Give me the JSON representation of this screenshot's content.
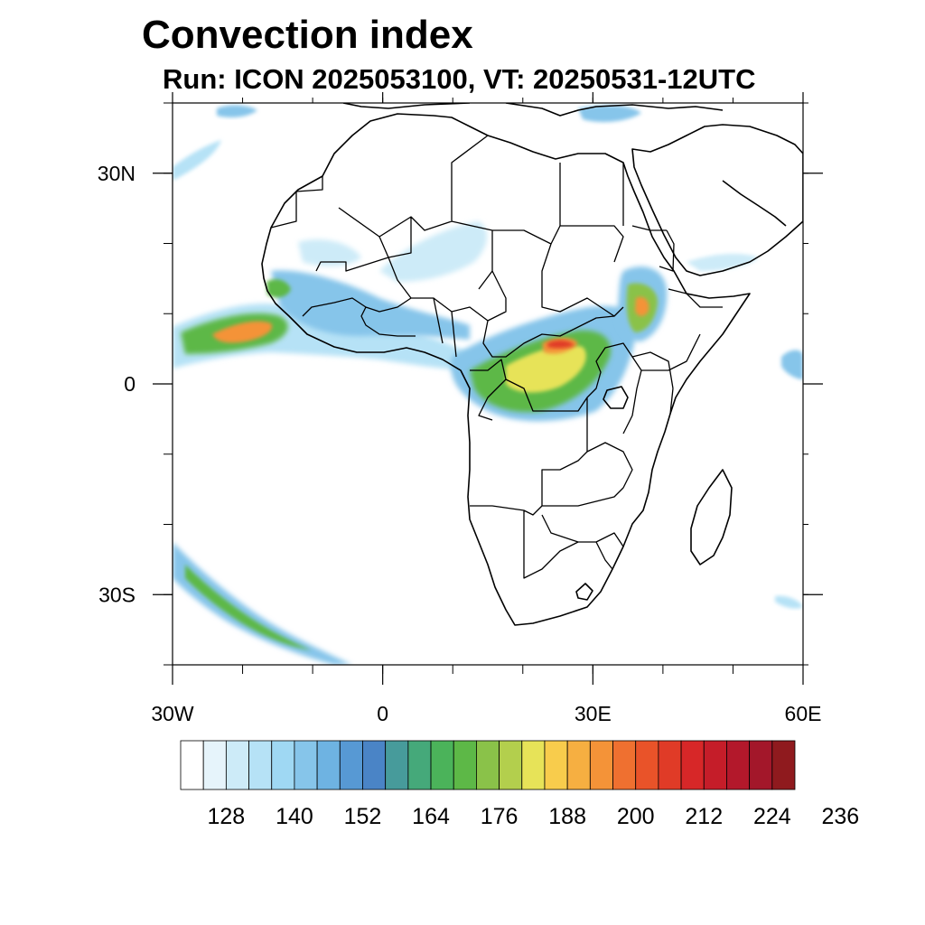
{
  "title": "Convection index",
  "subtitle": "Run: ICON 2025053100,  VT: 20250531-12UTC",
  "map": {
    "projection": "cylindrical-equidistant",
    "lon_range": [
      -30,
      60
    ],
    "lat_range": [
      -40,
      40
    ],
    "x_ticks": [
      {
        "value": -30,
        "label": "30W"
      },
      {
        "value": 0,
        "label": "0"
      },
      {
        "value": 30,
        "label": "30E"
      },
      {
        "value": 60,
        "label": "60E"
      }
    ],
    "y_ticks": [
      {
        "value": 30,
        "label": "30N"
      },
      {
        "value": 0,
        "label": "0"
      },
      {
        "value": -30,
        "label": "30S"
      }
    ],
    "minor_tick_step_deg": 10
  },
  "colorbar": {
    "colors": [
      "#ffffff",
      "#e6f4fb",
      "#cdebf8",
      "#b6e2f6",
      "#9fd8f3",
      "#86c5ea",
      "#6eb3e2",
      "#5799d4",
      "#4a84c6",
      "#479b9b",
      "#45a97a",
      "#4bb35a",
      "#5db847",
      "#8ac249",
      "#b3cf4d",
      "#e7e358",
      "#f8cc4c",
      "#f6af41",
      "#f49338",
      "#ef7030",
      "#e95329",
      "#e03b27",
      "#d72728",
      "#c51d29",
      "#b3182b",
      "#a3172a",
      "#8f1a1e"
    ],
    "labels": [
      "128",
      "140",
      "152",
      "164",
      "176",
      "188",
      "200",
      "212",
      "224",
      "236"
    ],
    "label_start_index": 2,
    "label_every": 3
  },
  "colors": {
    "light_blue": "#b6e2f6",
    "blue": "#6eb3e2",
    "green": "#5db847",
    "yellow": "#e7e358",
    "orange": "#f49338",
    "red": "#e03b27",
    "dark_red": "#a3172a"
  }
}
